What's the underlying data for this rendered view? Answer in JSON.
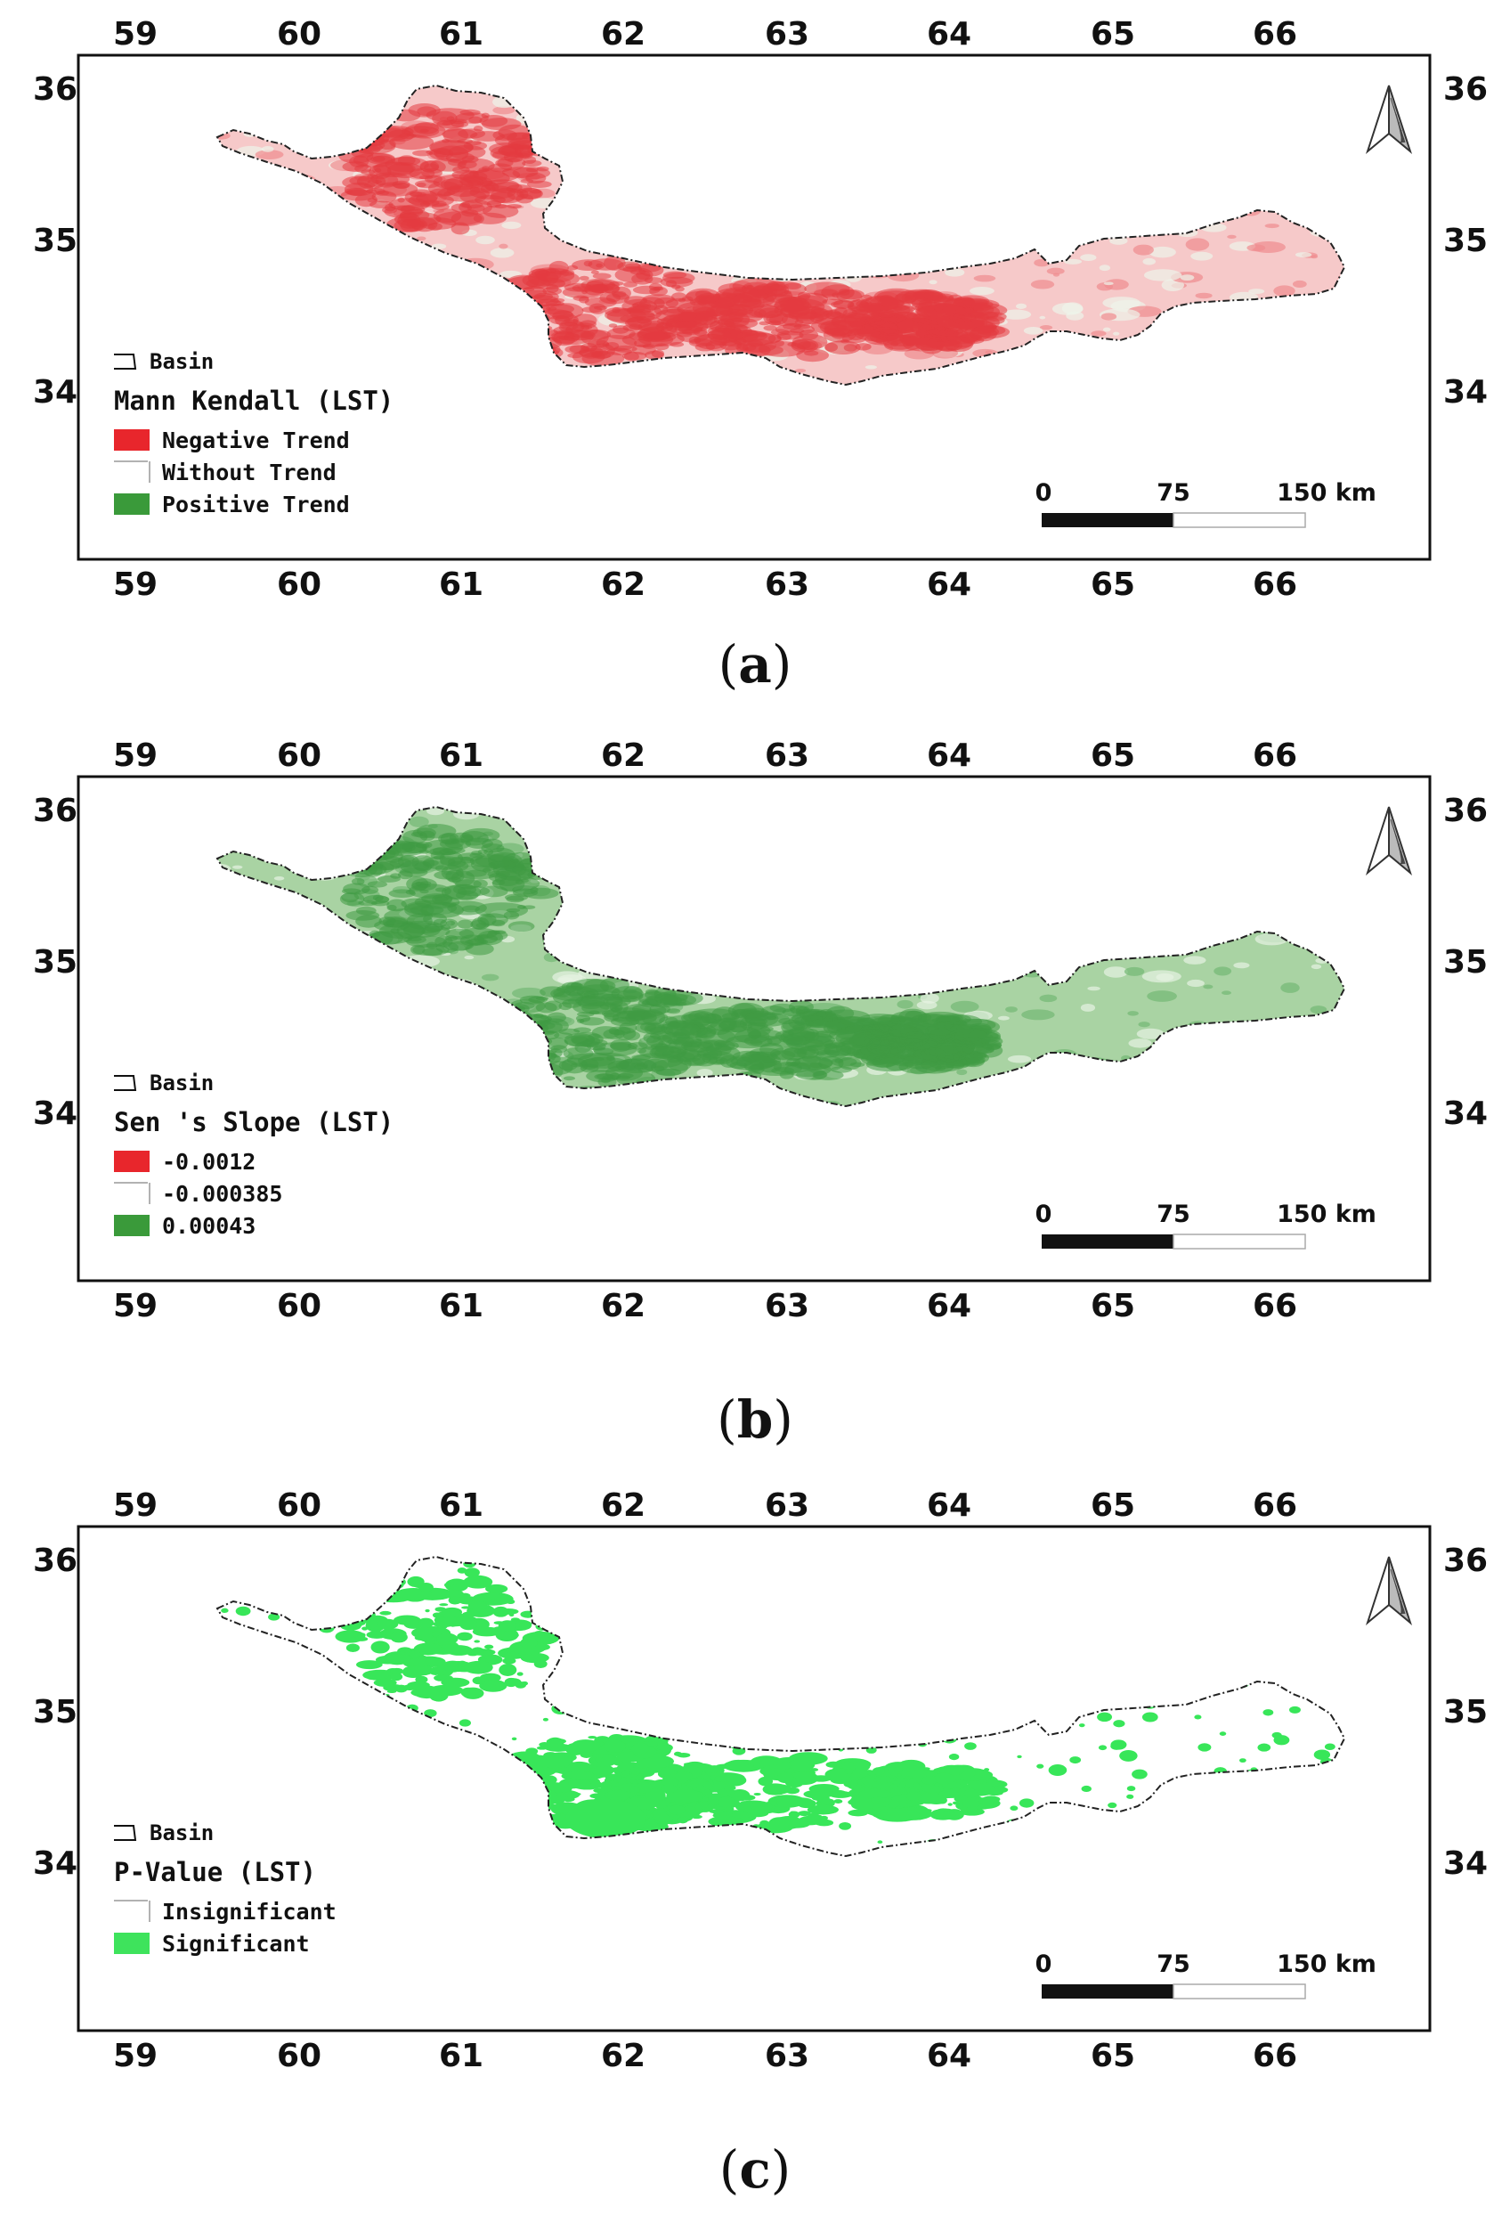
{
  "panels": [
    {
      "id": "a",
      "caption_open": "(",
      "caption_letter": "a",
      "caption_close": ")",
      "top_ticks": [
        "59",
        "60",
        "61",
        "62",
        "63",
        "64",
        "65",
        "66"
      ],
      "bottom_ticks": [
        "59",
        "60",
        "61",
        "62",
        "63",
        "64",
        "65",
        "66"
      ],
      "left_ticks": [
        "36",
        "35",
        "34"
      ],
      "right_ticks": [
        "36",
        "35",
        "34"
      ],
      "legend": {
        "basin_label": "Basin",
        "title": "Mann Kendall (LST)",
        "items": [
          {
            "label": "Negative Trend",
            "color": "#e8262c"
          },
          {
            "label": "Without Trend",
            "color": "#ffffff"
          },
          {
            "label": "Positive Trend",
            "color": "#3a9a3a"
          }
        ]
      },
      "scale_bar": {
        "labels": [
          "0",
          "75",
          "150 km"
        ]
      },
      "colors": {
        "base": "#f6c9c9",
        "hot": "#e33b3f",
        "mid": "#f08c8e",
        "light": "#eef4ea"
      }
    },
    {
      "id": "b",
      "caption_open": "(",
      "caption_letter": "b",
      "caption_close": ")",
      "top_ticks": [
        "59",
        "60",
        "61",
        "62",
        "63",
        "64",
        "65",
        "66"
      ],
      "bottom_ticks": [
        "59",
        "60",
        "61",
        "62",
        "63",
        "64",
        "65",
        "66"
      ],
      "left_ticks": [
        "36",
        "35",
        "34"
      ],
      "right_ticks": [
        "36",
        "35",
        "34"
      ],
      "legend": {
        "basin_label": "Basin",
        "title": "Sen 's Slope  (LST)",
        "items": [
          {
            "label": "-0.0012",
            "color": "#e8262c"
          },
          {
            "label": "-0.000385",
            "color": "#ffffff"
          },
          {
            "label": "0.00043",
            "color": "#3a9a3a"
          }
        ]
      },
      "scale_bar": {
        "labels": [
          "0",
          "75",
          "150 km"
        ]
      },
      "colors": {
        "base": "#a9d3a3",
        "hot": "#3f9a44",
        "mid": "#74b874",
        "light": "#e7f2e3"
      }
    },
    {
      "id": "c",
      "caption_open": "(",
      "caption_letter": "c",
      "caption_close": ")",
      "top_ticks": [
        "59",
        "60",
        "61",
        "62",
        "63",
        "64",
        "65",
        "66"
      ],
      "bottom_ticks": [
        "59",
        "60",
        "61",
        "62",
        "63",
        "64",
        "65",
        "66"
      ],
      "left_ticks": [
        "36",
        "35",
        "34"
      ],
      "right_ticks": [
        "36",
        "35",
        "34"
      ],
      "legend": {
        "basin_label": "Basin",
        "title": "P-Value (LST)",
        "items": [
          {
            "label": "Insignificant",
            "color": "#ffffff"
          },
          {
            "label": "Significant",
            "color": "#3ee35c"
          }
        ]
      },
      "scale_bar": {
        "labels": [
          "0",
          "75",
          "150 km"
        ]
      },
      "colors": {
        "base": "#ffffff",
        "hot": "#38e659",
        "mid": "#38e659",
        "light": "#ffffff"
      }
    }
  ]
}
